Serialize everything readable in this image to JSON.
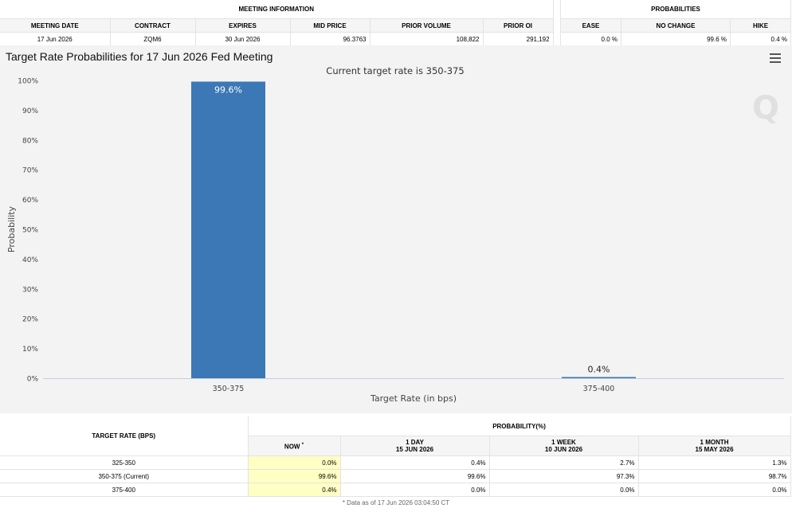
{
  "meeting_info": {
    "section_title": "MEETING INFORMATION",
    "columns": [
      "MEETING DATE",
      "CONTRACT",
      "EXPIRES",
      "MID PRICE",
      "PRIOR VOLUME",
      "PRIOR OI"
    ],
    "row": [
      "17 Jun 2026",
      "ZQM6",
      "30 Jun 2026",
      "96.3763",
      "108,822",
      "291,192"
    ]
  },
  "probabilities": {
    "section_title": "PROBABILITIES",
    "columns": [
      "EASE",
      "NO CHANGE",
      "HIKE"
    ],
    "row": [
      "0.0 %",
      "99.6 %",
      "0.4 %"
    ]
  },
  "chart_heading": "Target Rate Probabilities for 17 Jun 2026 Fed Meeting",
  "colors": {
    "bar": "#3b78b5",
    "now_highlight": "#ffffc4",
    "background": "#f3f3f3"
  },
  "chart_data": {
    "type": "bar",
    "title": "Current target rate is 350-375",
    "xlabel": "Target Rate (in bps)",
    "ylabel": "Probability",
    "categories": [
      "350-375",
      "375-400"
    ],
    "values": [
      99.6,
      0.4
    ],
    "value_labels": [
      "99.6%",
      "0.4%"
    ],
    "ylim": [
      0,
      100
    ],
    "yticks": [
      0,
      10,
      20,
      30,
      40,
      50,
      60,
      70,
      80,
      90,
      100
    ],
    "ytick_labels": [
      "0%",
      "10%",
      "20%",
      "30%",
      "40%",
      "50%",
      "60%",
      "70%",
      "80%",
      "90%",
      "100%"
    ],
    "grid": false,
    "watermark": "Q"
  },
  "history_table": {
    "rate_header": "TARGET RATE (BPS)",
    "prob_header": "PROBABILITY(%)",
    "columns": [
      {
        "line1": "NOW",
        "sup": "*",
        "line2": ""
      },
      {
        "line1": "1 DAY",
        "line2": "15 JUN 2026"
      },
      {
        "line1": "1 WEEK",
        "line2": "10 JUN 2026"
      },
      {
        "line1": "1 MONTH",
        "line2": "15 MAY 2026"
      }
    ],
    "rows": [
      {
        "rate": "325-350",
        "values": [
          "0.0%",
          "0.4%",
          "2.7%",
          "1.3%"
        ]
      },
      {
        "rate": "350-375 (Current)",
        "values": [
          "99.6%",
          "99.6%",
          "97.3%",
          "98.7%"
        ]
      },
      {
        "rate": "375-400",
        "values": [
          "0.4%",
          "0.0%",
          "0.0%",
          "0.0%"
        ]
      }
    ]
  },
  "footnote": "* Data as of 17 Jun 2026 03:04:50 CT"
}
